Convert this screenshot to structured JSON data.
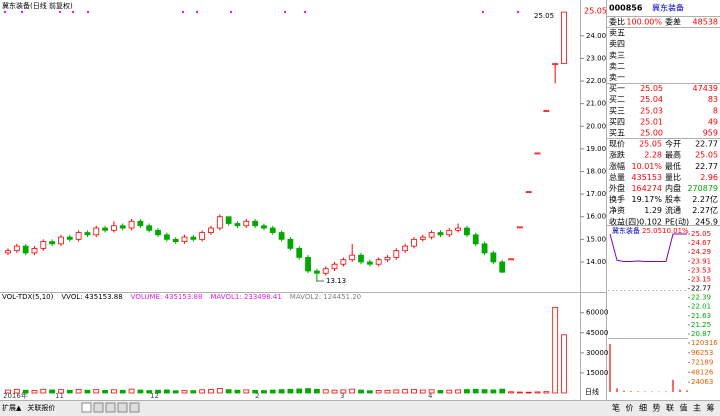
{
  "main": {
    "title": "冀东装备(日线 前复权)",
    "price_tag": "25.05",
    "high_annotation": "25.05",
    "low_annotation": "13.13",
    "period": "日线",
    "ylim": [
      12.76,
      25.23
    ],
    "yticks": [
      {
        "value": 24,
        "label": "24.00"
      },
      {
        "value": 23,
        "label": "23.00"
      },
      {
        "value": 22,
        "label": "22.00"
      },
      {
        "value": 21,
        "label": "21.00"
      },
      {
        "value": 20,
        "label": "20.00"
      },
      {
        "value": 19,
        "label": "19.00"
      },
      {
        "value": 18,
        "label": "18.00"
      },
      {
        "value": 17,
        "label": "17.00"
      },
      {
        "value": 16,
        "label": "16.00"
      },
      {
        "value": 15,
        "label": "15.00"
      },
      {
        "value": 14,
        "label": "14.00"
      }
    ],
    "candles": [
      [
        14.4,
        14.5,
        14.6,
        14.3
      ],
      [
        14.5,
        14.7,
        14.8,
        14.4
      ],
      [
        14.7,
        14.4,
        14.8,
        14.3
      ],
      [
        14.4,
        14.6,
        14.7,
        14.3
      ],
      [
        14.6,
        14.9,
        15.0,
        14.5
      ],
      [
        14.9,
        14.8,
        15.0,
        14.7
      ],
      [
        14.8,
        15.1,
        15.2,
        14.7
      ],
      [
        15.1,
        15.0,
        15.2,
        14.9
      ],
      [
        15.0,
        15.3,
        15.4,
        14.9
      ],
      [
        15.3,
        15.2,
        15.4,
        15.1
      ],
      [
        15.2,
        15.5,
        15.6,
        15.1
      ],
      [
        15.5,
        15.4,
        15.6,
        15.3
      ],
      [
        15.4,
        15.6,
        15.8,
        15.3
      ],
      [
        15.6,
        15.5,
        15.7,
        15.4
      ],
      [
        15.5,
        15.8,
        15.9,
        15.4
      ],
      [
        15.8,
        15.6,
        15.9,
        15.5
      ],
      [
        15.6,
        15.4,
        15.7,
        15.3
      ],
      [
        15.4,
        15.2,
        15.5,
        15.1
      ],
      [
        15.2,
        15.0,
        15.3,
        14.9
      ],
      [
        15.0,
        14.9,
        15.1,
        14.8
      ],
      [
        14.9,
        15.1,
        15.2,
        14.8
      ],
      [
        15.1,
        15.0,
        15.2,
        14.9
      ],
      [
        15.0,
        15.3,
        15.4,
        14.9
      ],
      [
        15.3,
        15.5,
        15.6,
        15.2
      ],
      [
        15.5,
        16.0,
        16.1,
        15.4
      ],
      [
        16.0,
        15.7,
        16.0,
        15.6
      ],
      [
        15.7,
        15.6,
        15.8,
        15.5
      ],
      [
        15.6,
        15.8,
        15.9,
        15.5
      ],
      [
        15.8,
        15.6,
        15.9,
        15.5
      ],
      [
        15.6,
        15.5,
        15.7,
        15.4
      ],
      [
        15.5,
        15.3,
        15.6,
        15.2
      ],
      [
        15.3,
        15.0,
        15.4,
        14.9
      ],
      [
        15.0,
        14.6,
        15.1,
        14.5
      ],
      [
        14.6,
        14.2,
        14.7,
        14.1
      ],
      [
        14.2,
        13.6,
        14.3,
        13.5
      ],
      [
        13.6,
        13.5,
        13.7,
        13.13
      ],
      [
        13.5,
        13.7,
        13.8,
        13.4
      ],
      [
        13.7,
        13.9,
        14.0,
        13.6
      ],
      [
        13.9,
        14.1,
        14.2,
        13.8
      ],
      [
        14.1,
        14.3,
        14.8,
        14.0
      ],
      [
        14.3,
        14.0,
        14.4,
        13.9
      ],
      [
        14.0,
        13.9,
        14.1,
        13.8
      ],
      [
        13.9,
        14.1,
        14.2,
        13.8
      ],
      [
        14.1,
        14.2,
        14.3,
        14.0
      ],
      [
        14.2,
        14.5,
        14.6,
        14.1
      ],
      [
        14.5,
        14.7,
        14.8,
        14.4
      ],
      [
        14.7,
        15.0,
        15.1,
        14.6
      ],
      [
        15.0,
        15.1,
        15.2,
        14.9
      ],
      [
        15.1,
        15.3,
        15.4,
        15.0
      ],
      [
        15.3,
        15.2,
        15.4,
        15.1
      ],
      [
        15.2,
        15.4,
        15.5,
        15.1
      ],
      [
        15.4,
        15.5,
        15.7,
        15.3
      ],
      [
        15.5,
        15.2,
        15.6,
        15.1
      ],
      [
        15.2,
        14.8,
        15.3,
        14.7
      ],
      [
        14.8,
        14.4,
        14.9,
        14.3
      ],
      [
        14.4,
        14.0,
        14.5,
        13.9
      ],
      [
        14.0,
        13.55,
        14.1,
        13.5
      ],
      [
        14.14,
        14.14,
        14.14,
        14.14
      ],
      [
        15.55,
        15.55,
        15.55,
        15.55
      ],
      [
        17.11,
        17.11,
        17.11,
        17.11
      ],
      [
        18.82,
        18.82,
        18.82,
        18.82
      ],
      [
        20.7,
        20.7,
        20.7,
        20.7
      ],
      [
        22.77,
        22.77,
        22.77,
        21.9
      ],
      [
        22.77,
        25.05,
        25.05,
        22.77
      ]
    ],
    "volume": [
      2200,
      2600,
      2100,
      1900,
      2800,
      2300,
      2500,
      2000,
      2700,
      2100,
      2600,
      1900,
      2400,
      2000,
      2900,
      2200,
      1800,
      2100,
      2300,
      1700,
      2000,
      1800,
      2400,
      2600,
      3400,
      2500,
      2100,
      2300,
      2000,
      1800,
      2200,
      2500,
      2800,
      3000,
      3300,
      2700,
      2400,
      2100,
      2300,
      2900,
      2200,
      1700,
      1900,
      2000,
      2300,
      2500,
      2700,
      2200,
      2400,
      1900,
      2100,
      2300,
      2600,
      2800,
      2500,
      2300,
      2900,
      900,
      700,
      600,
      800,
      1000,
      64000,
      43515
    ],
    "vol_ylim": [
      0,
      68000
    ],
    "vol_yticks": [
      15000,
      30000,
      45000,
      60000
    ],
    "vol_header": [
      {
        "text": "VOL-TDX(5,10)",
        "color": "#000000"
      },
      {
        "text": "VVOL: 435153.88",
        "color": "#000000"
      },
      {
        "text": "VOLUME: 435153.88",
        "color": "#e020e0"
      },
      {
        "text": "MAVOL1: 233498.41",
        "color": "#e020e0"
      },
      {
        "text": "MAVOL2: 124451.20",
        "color": "#808080"
      }
    ],
    "x_labels": [
      "2016年",
      "11",
      "12",
      "2",
      "3",
      "4"
    ]
  },
  "quote": {
    "code": "000856",
    "name": "冀东装备",
    "rows": [
      [
        "委比",
        "100.00%",
        "委差",
        "48538"
      ],
      [
        "卖五"
      ],
      [
        "卖四"
      ],
      [
        "卖三"
      ],
      [
        "卖二"
      ],
      [
        "卖一"
      ],
      [
        "买一",
        "25.05",
        "47439"
      ],
      [
        "买二",
        "25.04",
        "83"
      ],
      [
        "买三",
        "25.03",
        "8"
      ],
      [
        "买四",
        "25.01",
        "49"
      ],
      [
        "买五",
        "25.00",
        "959"
      ],
      [
        "现价",
        "25.05",
        "今开",
        "22.77"
      ],
      [
        "涨跌",
        "2.28",
        "最高",
        "25.05"
      ],
      [
        "涨幅",
        "10.01%",
        "最低",
        "22.77"
      ],
      [
        "总量",
        "435153",
        "量比",
        "2.96"
      ],
      [
        "外盘",
        "164274",
        "内盘",
        "270879"
      ],
      [
        "换手",
        "19.17%",
        "股本",
        "2.27亿"
      ],
      [
        "净资",
        "1.29",
        "流通",
        "2.27亿"
      ],
      [
        "收益(四)",
        "0.102",
        "PE(动)",
        "245.9"
      ]
    ]
  },
  "intraday": {
    "name": "冀东装备",
    "price_text": "25.05",
    "change_text": "10.01%",
    "ylim": [
      20.87,
      25.05
    ],
    "price_ticks": [
      25.05,
      24.67,
      24.29,
      23.91,
      23.53,
      23.15,
      22.77,
      22.39,
      22.01,
      21.63,
      21.25,
      20.87
    ],
    "vol_ticks": [
      120316,
      96253,
      72189,
      48126,
      24063
    ],
    "vol_ylim": [
      0,
      120316
    ],
    "price": [
      25.05,
      23.95,
      23.9,
      23.9,
      23.92,
      23.9,
      23.9,
      23.9,
      23.9,
      25.05,
      25.05,
      25.05
    ],
    "volume": [
      118000,
      9000,
      3000,
      2000,
      1500,
      1200,
      1000,
      900,
      1200,
      30000,
      6000,
      4000
    ]
  },
  "tabs": {
    "left": [
      "扩展▲",
      "关联报价"
    ],
    "right": [
      "笔",
      "价",
      "细",
      "势",
      "联",
      "值",
      "主",
      "筹"
    ]
  }
}
